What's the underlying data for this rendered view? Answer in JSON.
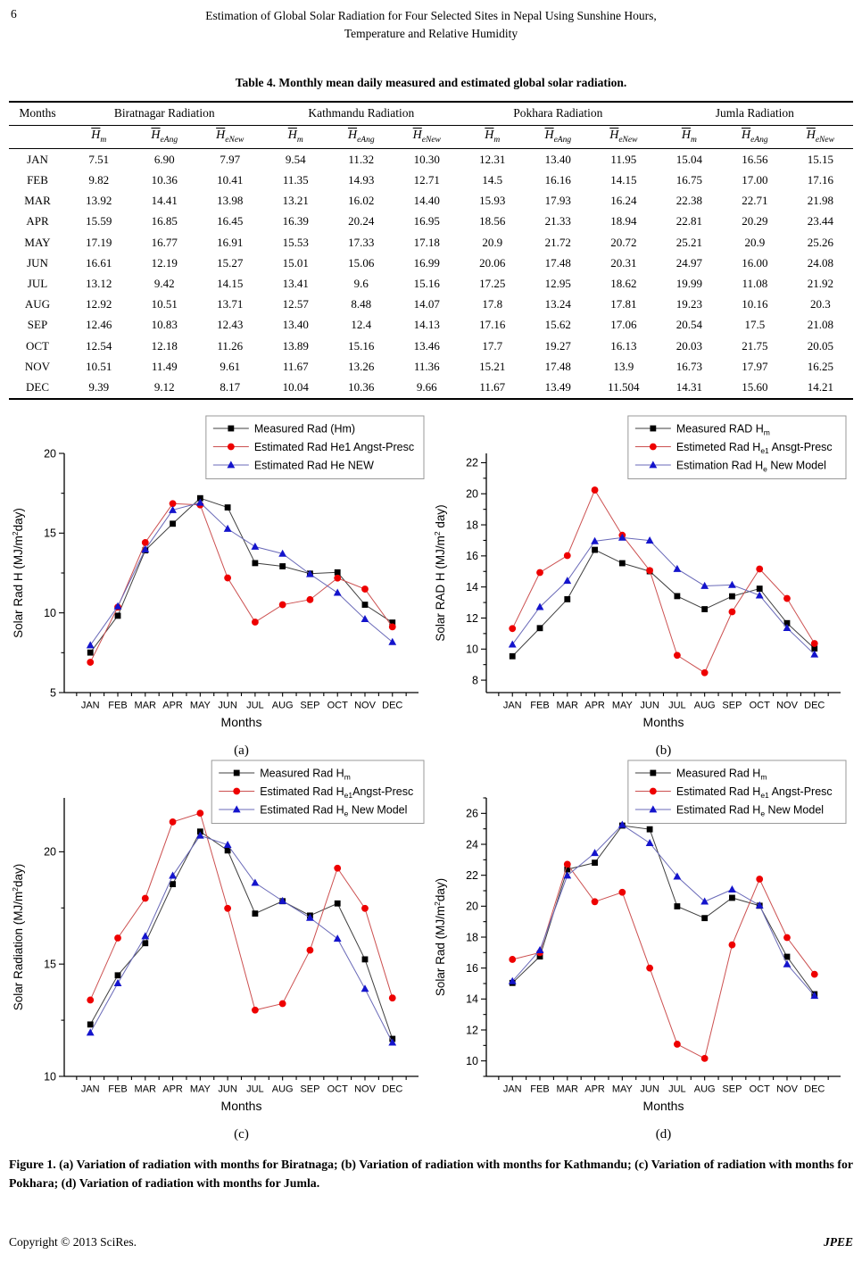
{
  "page": {
    "number": "6",
    "running_title_line1": "Estimation of Global Solar Radiation for Four Selected Sites in Nepal Using Sunshine Hours,",
    "running_title_line2": "Temperature and Relative Humidity",
    "footer_left": "Copyright © 2013 SciRes.",
    "footer_right": "JPEE"
  },
  "table": {
    "caption": "Table 4. Monthly mean daily measured and estimated global solar radiation.",
    "months_header": "Months",
    "groups": [
      "Biratnagar Radiation",
      "Kathmandu Radiation",
      "Pokhara Radiation",
      "Jumla Radiation"
    ],
    "sub_headers": [
      {
        "main": "H",
        "sub": "m"
      },
      {
        "main": "H",
        "sub": "eAng"
      },
      {
        "main": "H",
        "sub": "eNew"
      }
    ],
    "rows": [
      {
        "month": "JAN",
        "values": [
          "7.51",
          "6.90",
          "7.97",
          "9.54",
          "11.32",
          "10.30",
          "12.31",
          "13.40",
          "11.95",
          "15.04",
          "16.56",
          "15.15"
        ]
      },
      {
        "month": "FEB",
        "values": [
          "9.82",
          "10.36",
          "10.41",
          "11.35",
          "14.93",
          "12.71",
          "14.5",
          "16.16",
          "14.15",
          "16.75",
          "17.00",
          "17.16"
        ]
      },
      {
        "month": "MAR",
        "values": [
          "13.92",
          "14.41",
          "13.98",
          "13.21",
          "16.02",
          "14.40",
          "15.93",
          "17.93",
          "16.24",
          "22.38",
          "22.71",
          "21.98"
        ]
      },
      {
        "month": "APR",
        "values": [
          "15.59",
          "16.85",
          "16.45",
          "16.39",
          "20.24",
          "16.95",
          "18.56",
          "21.33",
          "18.94",
          "22.81",
          "20.29",
          "23.44"
        ]
      },
      {
        "month": "MAY",
        "values": [
          "17.19",
          "16.77",
          "16.91",
          "15.53",
          "17.33",
          "17.18",
          "20.9",
          "21.72",
          "20.72",
          "25.21",
          "20.9",
          "25.26"
        ]
      },
      {
        "month": "JUN",
        "values": [
          "16.61",
          "12.19",
          "15.27",
          "15.01",
          "15.06",
          "16.99",
          "20.06",
          "17.48",
          "20.31",
          "24.97",
          "16.00",
          "24.08"
        ]
      },
      {
        "month": "JUL",
        "values": [
          "13.12",
          "9.42",
          "14.15",
          "13.41",
          "9.6",
          "15.16",
          "17.25",
          "12.95",
          "18.62",
          "19.99",
          "11.08",
          "21.92"
        ]
      },
      {
        "month": "AUG",
        "values": [
          "12.92",
          "10.51",
          "13.71",
          "12.57",
          "8.48",
          "14.07",
          "17.8",
          "13.24",
          "17.81",
          "19.23",
          "10.16",
          "20.3"
        ]
      },
      {
        "month": "SEP",
        "values": [
          "12.46",
          "10.83",
          "12.43",
          "13.40",
          "12.4",
          "14.13",
          "17.16",
          "15.62",
          "17.06",
          "20.54",
          "17.5",
          "21.08"
        ]
      },
      {
        "month": "OCT",
        "values": [
          "12.54",
          "12.18",
          "11.26",
          "13.89",
          "15.16",
          "13.46",
          "17.7",
          "19.27",
          "16.13",
          "20.03",
          "21.75",
          "20.05"
        ]
      },
      {
        "month": "NOV",
        "values": [
          "10.51",
          "11.49",
          "9.61",
          "11.67",
          "13.26",
          "11.36",
          "15.21",
          "17.48",
          "13.9",
          "16.73",
          "17.97",
          "16.25"
        ]
      },
      {
        "month": "DEC",
        "values": [
          "9.39",
          "9.12",
          "8.17",
          "10.04",
          "10.36",
          "9.66",
          "11.67",
          "13.49",
          "11.504",
          "14.31",
          "15.60",
          "14.21"
        ]
      }
    ]
  },
  "chart_data": [
    {
      "type": "line",
      "site": "Biratnagar",
      "label": "(a)",
      "xlabel": "Months",
      "ylabel": "Solar Rad H (MJ/m^{2}day)",
      "ylim": [
        5,
        20
      ],
      "yticks": [
        5,
        10,
        15,
        20
      ],
      "yminor": 2.5,
      "legend_position": "top-right",
      "categories": [
        "JAN",
        "FEB",
        "MAR",
        "APR",
        "MAY",
        "JUN",
        "JUL",
        "AUG",
        "SEP",
        "OCT",
        "NOV",
        "DEC"
      ],
      "series": [
        {
          "name": "Measured Rad (Hm)",
          "marker": "square",
          "marker_color": "#000000",
          "line_color": "#3f3f3f",
          "values": [
            7.51,
            9.82,
            13.92,
            15.59,
            17.19,
            16.61,
            13.12,
            12.92,
            12.46,
            12.54,
            10.51,
            9.39
          ]
        },
        {
          "name": "Estimated Rad He1 Angst-Presc",
          "marker": "circle",
          "marker_color": "#ee0000",
          "line_color": "#cc5050",
          "values": [
            6.9,
            10.36,
            14.41,
            16.85,
            16.77,
            12.19,
            9.42,
            10.51,
            10.83,
            12.18,
            11.49,
            9.12
          ]
        },
        {
          "name": "Estimated Rad He NEW",
          "marker": "triangle",
          "marker_color": "#1414cc",
          "line_color": "#6a6ab8",
          "values": [
            7.97,
            10.41,
            13.98,
            16.45,
            16.91,
            15.27,
            14.15,
            13.71,
            12.43,
            11.26,
            9.61,
            8.17
          ]
        }
      ]
    },
    {
      "type": "line",
      "site": "Kathmandu",
      "label": "(b)",
      "xlabel": "Months",
      "ylabel": "Solar RAD H (MJ/m^{2} day)",
      "ylim": [
        7.2,
        22.6
      ],
      "yticks": [
        8,
        10,
        12,
        14,
        16,
        18,
        20,
        22
      ],
      "yminor": 1,
      "legend_position": "top-right",
      "categories": [
        "JAN",
        "FEB",
        "MAR",
        "APR",
        "MAY",
        "JUN",
        "JUL",
        "AUG",
        "SEP",
        "OCT",
        "NOV",
        "DEC"
      ],
      "series": [
        {
          "name": "Measured RAD H_{m}",
          "marker": "square",
          "marker_color": "#000000",
          "line_color": "#3f3f3f",
          "values": [
            9.54,
            11.35,
            13.21,
            16.39,
            15.53,
            15.01,
            13.41,
            12.57,
            13.4,
            13.89,
            11.67,
            10.04
          ]
        },
        {
          "name": "Estimeted Rad H_{e1} Ansgt-Presc",
          "marker": "circle",
          "marker_color": "#ee0000",
          "line_color": "#cc5050",
          "values": [
            11.32,
            14.93,
            16.02,
            20.24,
            17.33,
            15.06,
            9.6,
            8.48,
            12.4,
            15.16,
            13.26,
            10.36
          ]
        },
        {
          "name": "Estimation Rad H_{e} New Model",
          "marker": "triangle",
          "marker_color": "#1414cc",
          "line_color": "#6a6ab8",
          "values": [
            10.3,
            12.71,
            14.4,
            16.95,
            17.18,
            16.99,
            15.16,
            14.07,
            14.13,
            13.46,
            11.36,
            9.66
          ]
        }
      ]
    },
    {
      "type": "line",
      "site": "Pokhara",
      "label": "(c)",
      "xlabel": "Months",
      "ylabel": "Solar Radiation (MJ/m^{2}day)",
      "ylim": [
        10,
        22.4
      ],
      "yticks": [
        10,
        15,
        20
      ],
      "yminor": 2.5,
      "legend_position": "top-right",
      "categories": [
        "JAN",
        "FEB",
        "MAR",
        "APR",
        "MAY",
        "JUN",
        "JUL",
        "AUG",
        "SEP",
        "OCT",
        "NOV",
        "DEC"
      ],
      "series": [
        {
          "name": "Measured Rad H_{m}",
          "marker": "square",
          "marker_color": "#000000",
          "line_color": "#3f3f3f",
          "values": [
            12.31,
            14.5,
            15.93,
            18.56,
            20.9,
            20.06,
            17.25,
            17.8,
            17.16,
            17.7,
            15.21,
            11.67
          ]
        },
        {
          "name": "Estimated Rad H_{e1}Angst-Presc",
          "marker": "circle",
          "marker_color": "#ee0000",
          "line_color": "#cc5050",
          "values": [
            13.4,
            16.16,
            17.93,
            21.33,
            21.72,
            17.48,
            12.95,
            13.24,
            15.62,
            19.27,
            17.48,
            13.49
          ]
        },
        {
          "name": "Estimated Rad H_{e} New Model",
          "marker": "triangle",
          "marker_color": "#1414cc",
          "line_color": "#6a6ab8",
          "values": [
            11.95,
            14.15,
            16.24,
            18.94,
            20.72,
            20.31,
            18.62,
            17.81,
            17.06,
            16.13,
            13.9,
            11.504
          ]
        }
      ]
    },
    {
      "type": "line",
      "site": "Jumla",
      "label": "(d)",
      "xlabel": "Months",
      "ylabel": "Solar Rad (MJ/m^{2}day)",
      "ylim": [
        9,
        27
      ],
      "yticks": [
        10,
        12,
        14,
        16,
        18,
        20,
        22,
        24,
        26
      ],
      "yminor": 1,
      "legend_position": "top-right",
      "categories": [
        "JAN",
        "FEB",
        "MAR",
        "APR",
        "MAY",
        "JUN",
        "JUL",
        "AUG",
        "SEP",
        "OCT",
        "NOV",
        "DEC"
      ],
      "series": [
        {
          "name": "Measured Rad H_{m}",
          "marker": "square",
          "marker_color": "#000000",
          "line_color": "#3f3f3f",
          "values": [
            15.04,
            16.75,
            22.38,
            22.81,
            25.21,
            24.97,
            19.99,
            19.23,
            20.54,
            20.03,
            16.73,
            14.31
          ]
        },
        {
          "name": "Estimated Rad H_{e1} Angst-Presc",
          "marker": "circle",
          "marker_color": "#ee0000",
          "line_color": "#cc5050",
          "values": [
            16.56,
            17.0,
            22.71,
            20.29,
            20.9,
            16.0,
            11.08,
            10.16,
            17.5,
            21.75,
            17.97,
            15.6
          ]
        },
        {
          "name": "Estimated Rad H_{e} New Model",
          "marker": "triangle",
          "marker_color": "#1414cc",
          "line_color": "#6a6ab8",
          "values": [
            15.15,
            17.16,
            21.98,
            23.44,
            25.26,
            24.08,
            21.92,
            20.3,
            21.08,
            20.05,
            16.25,
            14.21
          ]
        }
      ]
    }
  ],
  "figure_caption": "Figure 1. (a) Variation of radiation with months for Biratnaga; (b) Variation of radiation with months for Kathmandu; (c) Variation of radiation with months for Pokhara; (d) Variation of radiation with months for Jumla."
}
